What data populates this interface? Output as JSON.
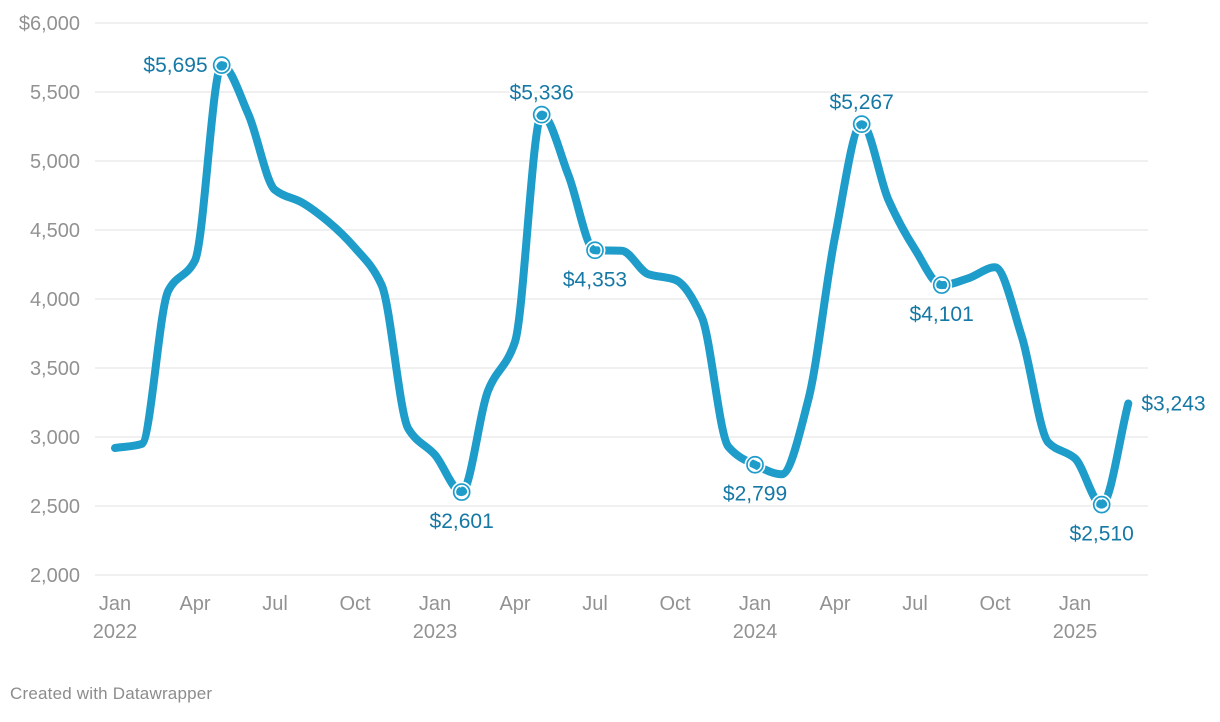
{
  "chart_data": {
    "type": "line",
    "title": "",
    "currency_prefix": "$",
    "x_months": [
      "Jan 2022",
      "Feb 2022",
      "Mar 2022",
      "Apr 2022",
      "May 2022",
      "Jun 2022",
      "Jul 2022",
      "Aug 2022",
      "Sep 2022",
      "Oct 2022",
      "Nov 2022",
      "Dec 2022",
      "Jan 2023",
      "Feb 2023",
      "Mar 2023",
      "Apr 2023",
      "May 2023",
      "Jun 2023",
      "Jul 2023",
      "Aug 2023",
      "Sep 2023",
      "Oct 2023",
      "Nov 2023",
      "Dec 2023",
      "Jan 2024",
      "Feb 2024",
      "Mar 2024",
      "Apr 2024",
      "May 2024",
      "Jun 2024",
      "Jul 2024",
      "Aug 2024",
      "Sep 2024",
      "Oct 2024",
      "Nov 2024",
      "Dec 2024",
      "Jan 2025",
      "Feb 2025",
      "Mar 2025"
    ],
    "values": [
      2920,
      2950,
      4060,
      4280,
      5695,
      5340,
      4790,
      4700,
      4560,
      4370,
      4100,
      3060,
      2870,
      2601,
      3340,
      3690,
      5336,
      4900,
      4353,
      4350,
      4180,
      4140,
      3870,
      2930,
      2799,
      2730,
      3270,
      4450,
      5267,
      4720,
      4360,
      4101,
      4150,
      4230,
      3730,
      2960,
      2845,
      2510,
      3243
    ],
    "ylim": [
      2000,
      6000
    ],
    "grid": true,
    "legend": "none",
    "y_ticks": [
      {
        "value": 6000,
        "label": "$6,000"
      },
      {
        "value": 5500,
        "label": "5,500"
      },
      {
        "value": 5000,
        "label": "5,000"
      },
      {
        "value": 4500,
        "label": "4,500"
      },
      {
        "value": 4000,
        "label": "4,000"
      },
      {
        "value": 3500,
        "label": "3,500"
      },
      {
        "value": 3000,
        "label": "3,000"
      },
      {
        "value": 2500,
        "label": "2,500"
      },
      {
        "value": 2000,
        "label": "2,000"
      }
    ],
    "x_ticks": [
      {
        "month_index": 0,
        "label": "Jan",
        "year": "2022"
      },
      {
        "month_index": 3,
        "label": "Apr"
      },
      {
        "month_index": 6,
        "label": "Jul"
      },
      {
        "month_index": 9,
        "label": "Oct"
      },
      {
        "month_index": 12,
        "label": "Jan",
        "year": "2023"
      },
      {
        "month_index": 15,
        "label": "Apr"
      },
      {
        "month_index": 18,
        "label": "Jul"
      },
      {
        "month_index": 21,
        "label": "Oct"
      },
      {
        "month_index": 24,
        "label": "Jan",
        "year": "2024"
      },
      {
        "month_index": 27,
        "label": "Apr"
      },
      {
        "month_index": 30,
        "label": "Jul"
      },
      {
        "month_index": 33,
        "label": "Oct"
      },
      {
        "month_index": 36,
        "label": "Jan",
        "year": "2025"
      }
    ],
    "point_labels": [
      {
        "month_index": 4,
        "value": 5695,
        "label": "$5,695",
        "placement": "left",
        "marker": true
      },
      {
        "month_index": 13,
        "value": 2601,
        "label": "$2,601",
        "placement": "below",
        "marker": true
      },
      {
        "month_index": 16,
        "value": 5336,
        "label": "$5,336",
        "placement": "above",
        "marker": true
      },
      {
        "month_index": 18,
        "value": 4353,
        "label": "$4,353",
        "placement": "below",
        "marker": true
      },
      {
        "month_index": 24,
        "value": 2799,
        "label": "$2,799",
        "placement": "below",
        "marker": true
      },
      {
        "month_index": 28,
        "value": 5267,
        "label": "$5,267",
        "placement": "above",
        "marker": true
      },
      {
        "month_index": 31,
        "value": 4101,
        "label": "$4,101",
        "placement": "below",
        "marker": true
      },
      {
        "month_index": 37,
        "value": 2510,
        "label": "$2,510",
        "placement": "below",
        "marker": true
      },
      {
        "month_index": 38,
        "value": 3243,
        "label": "$3,243",
        "placement": "right",
        "marker": false
      }
    ],
    "colors": {
      "line": "#1e9cca",
      "point_label": "#1578a5",
      "axis_text": "#929292",
      "grid": "#e7e7e7"
    }
  },
  "footer": {
    "attribution": "Created with Datawrapper"
  }
}
